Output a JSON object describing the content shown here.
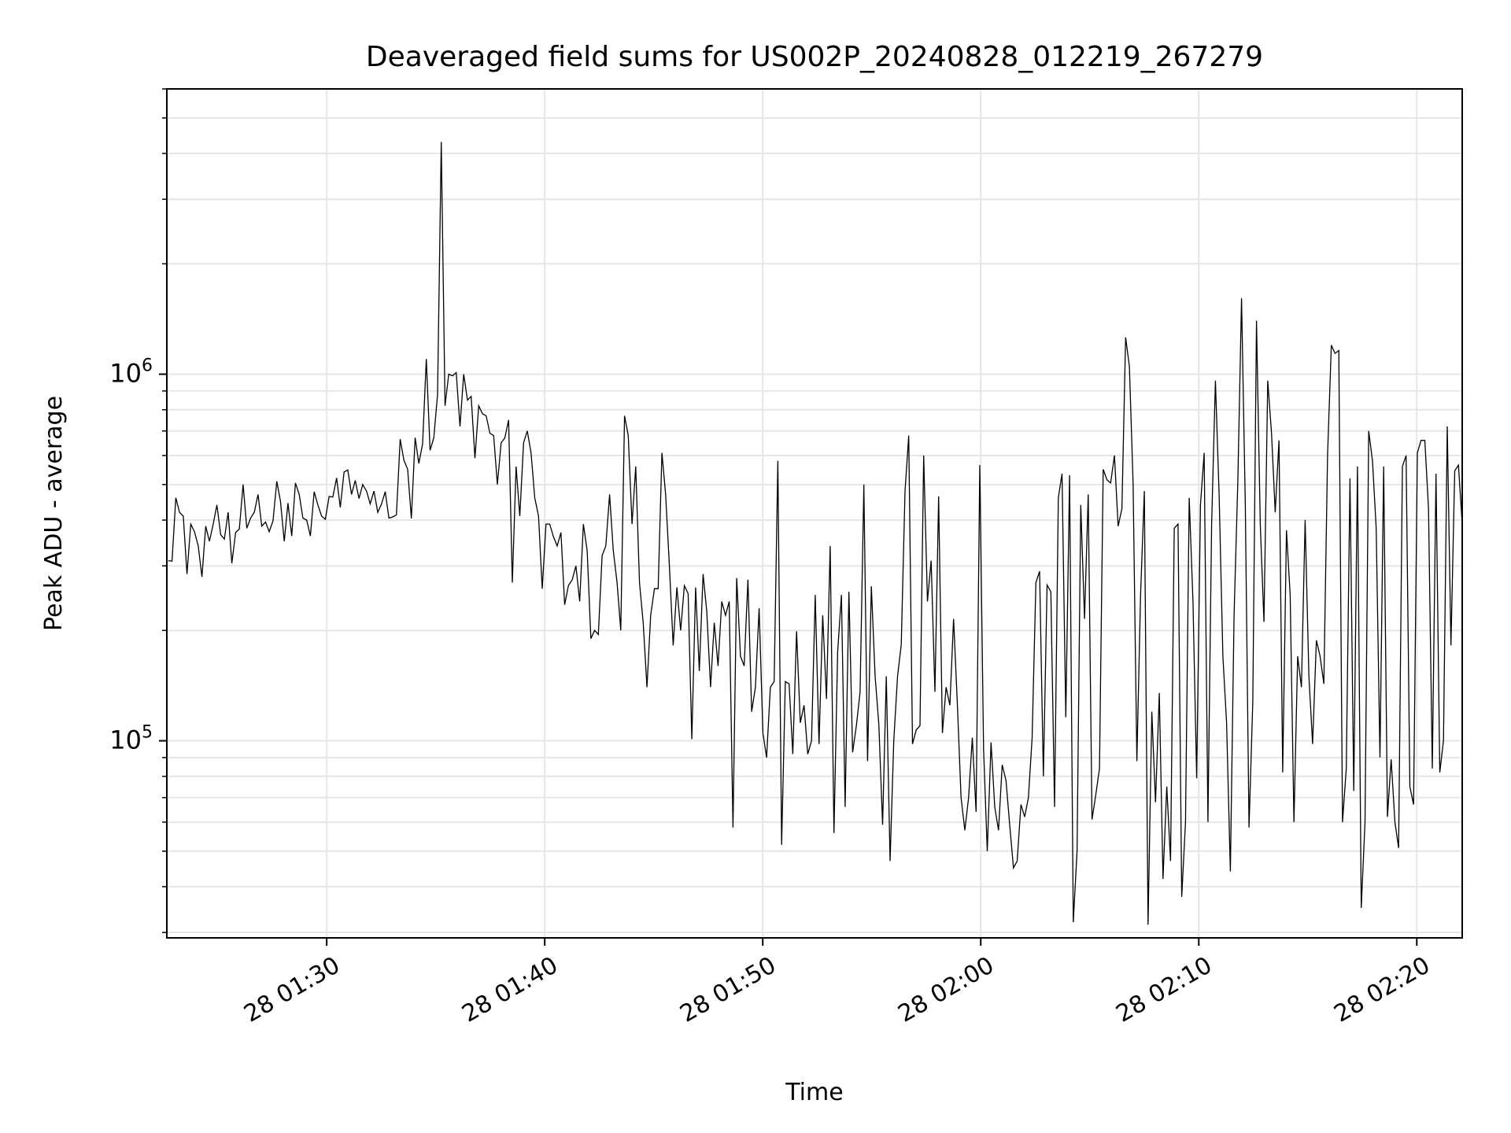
{
  "chart_data": {
    "type": "line",
    "title": "Deaveraged field sums for US002P_20240828_012219_267279",
    "xlabel": "Time",
    "ylabel": "Peak ADU - average",
    "x_range": [
      "2024-08-28 01:22:40",
      "2024-08-28 02:22:05"
    ],
    "y_scale": "log",
    "y_range": [
      29000,
      6000000
    ],
    "grid": true,
    "x_ticks": [
      {
        "t": "2024-08-28 01:30:00",
        "label": "28 01:30"
      },
      {
        "t": "2024-08-28 01:40:00",
        "label": "28 01:40"
      },
      {
        "t": "2024-08-28 01:50:00",
        "label": "28 01:50"
      },
      {
        "t": "2024-08-28 02:00:00",
        "label": "28 02:00"
      },
      {
        "t": "2024-08-28 02:10:00",
        "label": "28 02:10"
      },
      {
        "t": "2024-08-28 02:20:00",
        "label": "28 02:20"
      }
    ],
    "y_ticks": [
      {
        "value": 100000,
        "base": "10",
        "exp": "5"
      },
      {
        "value": 1000000,
        "base": "10",
        "exp": "6"
      }
    ],
    "line_color": "#000000",
    "series": [
      {
        "x_start": "2024-08-28 01:22:44",
        "x_end": "2024-08-28 02:22:05",
        "values": [
          310000,
          309000,
          460000,
          420000,
          410000,
          285000,
          390000,
          372000,
          340000,
          280000,
          385000,
          350000,
          390000,
          440000,
          365000,
          355000,
          420000,
          305000,
          370000,
          378000,
          500000,
          380000,
          405000,
          420000,
          470000,
          385000,
          395000,
          372000,
          398000,
          510000,
          450000,
          350000,
          445000,
          362000,
          505000,
          470000,
          405000,
          400000,
          362000,
          478000,
          440000,
          410000,
          402000,
          464000,
          462000,
          521000,
          433000,
          541000,
          548000,
          470000,
          513000,
          458000,
          500000,
          480000,
          443000,
          480000,
          420000,
          442000,
          478000,
          405000,
          408000,
          413000,
          665000,
          583000,
          550000,
          404000,
          671000,
          571000,
          646000,
          1100000,
          620000,
          670000,
          880000,
          4300000,
          820000,
          1000000,
          990000,
          1010000,
          720000,
          1000000,
          850000,
          870000,
          590000,
          820000,
          780000,
          770000,
          690000,
          680000,
          500000,
          650000,
          670000,
          750000,
          270000,
          560000,
          410000,
          650000,
          700000,
          610000,
          460000,
          410000,
          260000,
          390000,
          390000,
          360000,
          340000,
          370000,
          235000,
          265000,
          275000,
          300000,
          240000,
          390000,
          330000,
          190000,
          200000,
          195000,
          320000,
          340000,
          470000,
          330000,
          270000,
          200000,
          770000,
          680000,
          390000,
          560000,
          270000,
          210000,
          140000,
          220000,
          260000,
          260000,
          610000,
          470000,
          300000,
          182000,
          262000,
          200000,
          265000,
          252000,
          101000,
          262000,
          155000,
          285000,
          225000,
          140000,
          210000,
          160000,
          240000,
          220000,
          240000,
          58000,
          278000,
          170000,
          160000,
          275000,
          120000,
          140000,
          230000,
          105000,
          90000,
          140000,
          145000,
          580000,
          52000,
          145000,
          143000,
          92000,
          199000,
          112000,
          125000,
          92000,
          100000,
          250000,
          98000,
          220000,
          130000,
          340000,
          56000,
          175000,
          250000,
          66000,
          255000,
          93000,
          110000,
          136000,
          500000,
          88000,
          264000,
          150000,
          111000,
          59000,
          150000,
          47000,
          100000,
          150000,
          183000,
          480000,
          680000,
          98000,
          107000,
          110000,
          600000,
          240000,
          310000,
          136000,
          464000,
          105000,
          140000,
          125000,
          215000,
          126000,
          70000,
          57000,
          70000,
          102000,
          64000,
          565000,
          95000,
          50000,
          99000,
          66000,
          57000,
          86000,
          78000,
          59000,
          45000,
          47000,
          67000,
          62000,
          70000,
          102000,
          270000,
          290000,
          80000,
          266000,
          255000,
          66000,
          460000,
          535000,
          116000,
          530000,
          32000,
          50000,
          440000,
          215000,
          470000,
          61000,
          71000,
          84000,
          550000,
          515000,
          505000,
          600000,
          385000,
          430000,
          1260000,
          1050000,
          505000,
          88000,
          250000,
          480000,
          31500,
          120000,
          68000,
          135000,
          42000,
          75000,
          47000,
          380000,
          390000,
          37500,
          60000,
          460000,
          240000,
          79000,
          440000,
          610000,
          60000,
          390000,
          960000,
          470000,
          170000,
          112000,
          44000,
          220000,
          510000,
          1610000,
          440000,
          58000,
          128000,
          1400000,
          390000,
          211000,
          960000,
          690000,
          420000,
          660000,
          82000,
          375000,
          250000,
          60000,
          170000,
          140000,
          400000,
          150000,
          98000,
          188000,
          170000,
          143000,
          600000,
          1200000,
          1140000,
          1160000,
          60000,
          84000,
          520000,
          73000,
          560000,
          35000,
          60000,
          700000,
          580000,
          380000,
          90000,
          560000,
          62000,
          89000,
          60000,
          51000,
          560000,
          600000,
          75000,
          67000,
          610000,
          660000,
          660000,
          430000,
          84000,
          535000,
          82000,
          100000,
          720000,
          182000,
          545000,
          565000,
          390000
        ]
      }
    ]
  }
}
